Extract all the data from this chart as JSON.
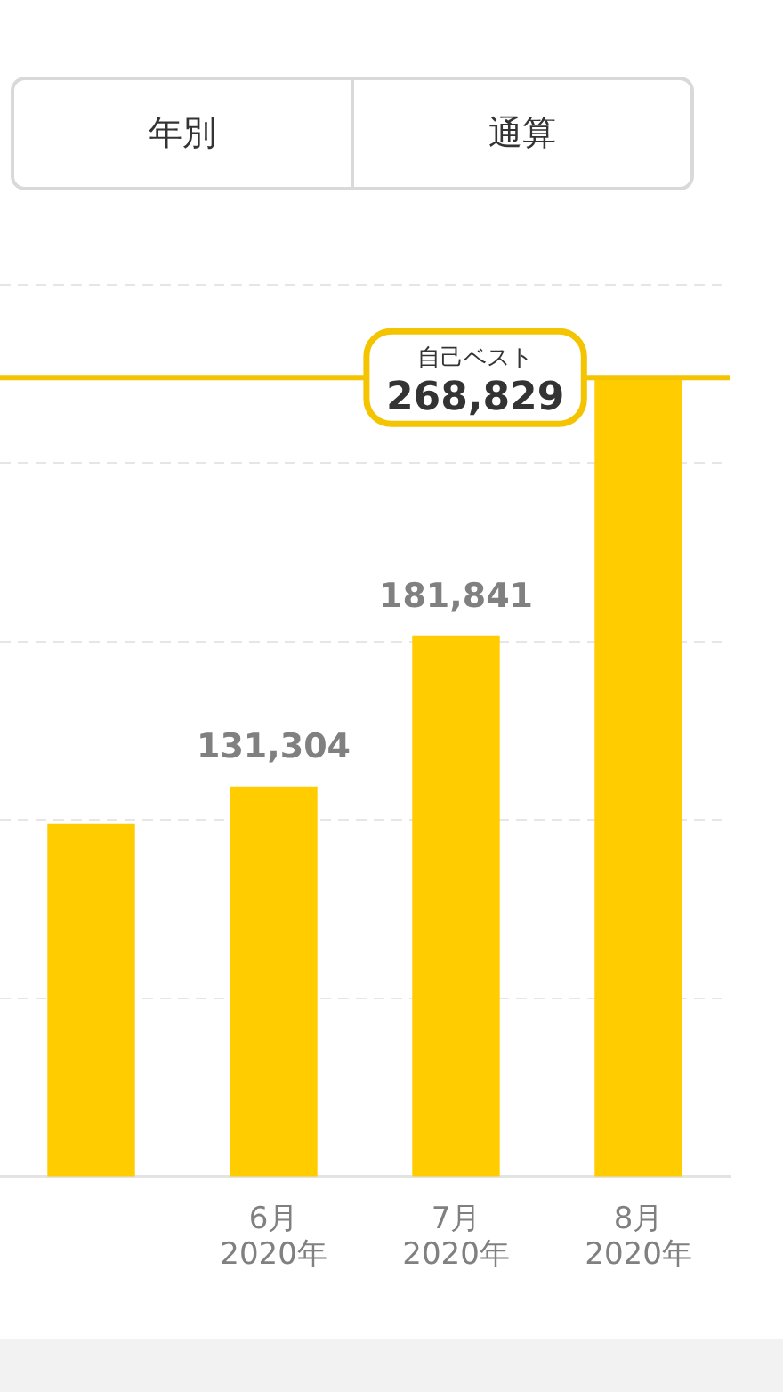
{
  "chart_data": {
    "type": "bar",
    "categories": [
      null,
      "6月\n2020年",
      "7月\n2020年",
      "8月\n2020年"
    ],
    "values": [
      118700,
      131304,
      181841,
      268829
    ],
    "value_labels": [
      null,
      "131,304",
      "181,841",
      null
    ],
    "color": "#ffcc00",
    "ylim": [
      0,
      300000
    ],
    "yticks": [
      {
        "value": 0,
        "label": null
      },
      {
        "value": 60000,
        "label": null
      },
      {
        "value": 120000,
        "label": null
      },
      {
        "value": 180000,
        "label": null
      },
      {
        "value": 240000,
        "label": null
      },
      {
        "value": 300000,
        "label": null
      }
    ],
    "tick_labels": "x",
    "grid": "y",
    "ref_lines": [
      {
        "axis": "y",
        "value": 268829,
        "label": "自己ベスト\n268,829",
        "color": "#f5c400"
      }
    ],
    "annotations": [
      "年別",
      "通算"
    ]
  }
}
